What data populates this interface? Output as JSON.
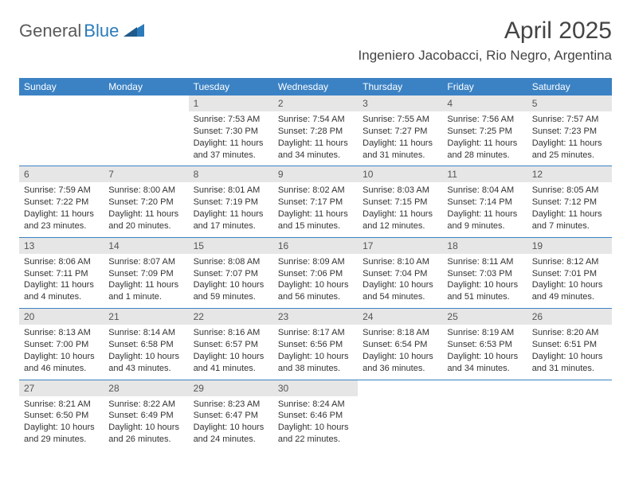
{
  "brand": {
    "part1": "General",
    "part2": "Blue"
  },
  "title": "April 2025",
  "location": "Ingeniero Jacobacci, Rio Negro, Argentina",
  "colors": {
    "header_bg": "#3b82c4",
    "header_text": "#ffffff",
    "daynum_bg": "#e6e6e6",
    "row_border": "#3b82c4",
    "logo_gray": "#5a5a5a",
    "logo_blue": "#2b7bba"
  },
  "weekdays": [
    "Sunday",
    "Monday",
    "Tuesday",
    "Wednesday",
    "Thursday",
    "Friday",
    "Saturday"
  ],
  "weeks": [
    [
      {
        "empty": true
      },
      {
        "empty": true
      },
      {
        "day": "1",
        "sunrise": "Sunrise: 7:53 AM",
        "sunset": "Sunset: 7:30 PM",
        "daylight": "Daylight: 11 hours and 37 minutes."
      },
      {
        "day": "2",
        "sunrise": "Sunrise: 7:54 AM",
        "sunset": "Sunset: 7:28 PM",
        "daylight": "Daylight: 11 hours and 34 minutes."
      },
      {
        "day": "3",
        "sunrise": "Sunrise: 7:55 AM",
        "sunset": "Sunset: 7:27 PM",
        "daylight": "Daylight: 11 hours and 31 minutes."
      },
      {
        "day": "4",
        "sunrise": "Sunrise: 7:56 AM",
        "sunset": "Sunset: 7:25 PM",
        "daylight": "Daylight: 11 hours and 28 minutes."
      },
      {
        "day": "5",
        "sunrise": "Sunrise: 7:57 AM",
        "sunset": "Sunset: 7:23 PM",
        "daylight": "Daylight: 11 hours and 25 minutes."
      }
    ],
    [
      {
        "day": "6",
        "sunrise": "Sunrise: 7:59 AM",
        "sunset": "Sunset: 7:22 PM",
        "daylight": "Daylight: 11 hours and 23 minutes."
      },
      {
        "day": "7",
        "sunrise": "Sunrise: 8:00 AM",
        "sunset": "Sunset: 7:20 PM",
        "daylight": "Daylight: 11 hours and 20 minutes."
      },
      {
        "day": "8",
        "sunrise": "Sunrise: 8:01 AM",
        "sunset": "Sunset: 7:19 PM",
        "daylight": "Daylight: 11 hours and 17 minutes."
      },
      {
        "day": "9",
        "sunrise": "Sunrise: 8:02 AM",
        "sunset": "Sunset: 7:17 PM",
        "daylight": "Daylight: 11 hours and 15 minutes."
      },
      {
        "day": "10",
        "sunrise": "Sunrise: 8:03 AM",
        "sunset": "Sunset: 7:15 PM",
        "daylight": "Daylight: 11 hours and 12 minutes."
      },
      {
        "day": "11",
        "sunrise": "Sunrise: 8:04 AM",
        "sunset": "Sunset: 7:14 PM",
        "daylight": "Daylight: 11 hours and 9 minutes."
      },
      {
        "day": "12",
        "sunrise": "Sunrise: 8:05 AM",
        "sunset": "Sunset: 7:12 PM",
        "daylight": "Daylight: 11 hours and 7 minutes."
      }
    ],
    [
      {
        "day": "13",
        "sunrise": "Sunrise: 8:06 AM",
        "sunset": "Sunset: 7:11 PM",
        "daylight": "Daylight: 11 hours and 4 minutes."
      },
      {
        "day": "14",
        "sunrise": "Sunrise: 8:07 AM",
        "sunset": "Sunset: 7:09 PM",
        "daylight": "Daylight: 11 hours and 1 minute."
      },
      {
        "day": "15",
        "sunrise": "Sunrise: 8:08 AM",
        "sunset": "Sunset: 7:07 PM",
        "daylight": "Daylight: 10 hours and 59 minutes."
      },
      {
        "day": "16",
        "sunrise": "Sunrise: 8:09 AM",
        "sunset": "Sunset: 7:06 PM",
        "daylight": "Daylight: 10 hours and 56 minutes."
      },
      {
        "day": "17",
        "sunrise": "Sunrise: 8:10 AM",
        "sunset": "Sunset: 7:04 PM",
        "daylight": "Daylight: 10 hours and 54 minutes."
      },
      {
        "day": "18",
        "sunrise": "Sunrise: 8:11 AM",
        "sunset": "Sunset: 7:03 PM",
        "daylight": "Daylight: 10 hours and 51 minutes."
      },
      {
        "day": "19",
        "sunrise": "Sunrise: 8:12 AM",
        "sunset": "Sunset: 7:01 PM",
        "daylight": "Daylight: 10 hours and 49 minutes."
      }
    ],
    [
      {
        "day": "20",
        "sunrise": "Sunrise: 8:13 AM",
        "sunset": "Sunset: 7:00 PM",
        "daylight": "Daylight: 10 hours and 46 minutes."
      },
      {
        "day": "21",
        "sunrise": "Sunrise: 8:14 AM",
        "sunset": "Sunset: 6:58 PM",
        "daylight": "Daylight: 10 hours and 43 minutes."
      },
      {
        "day": "22",
        "sunrise": "Sunrise: 8:16 AM",
        "sunset": "Sunset: 6:57 PM",
        "daylight": "Daylight: 10 hours and 41 minutes."
      },
      {
        "day": "23",
        "sunrise": "Sunrise: 8:17 AM",
        "sunset": "Sunset: 6:56 PM",
        "daylight": "Daylight: 10 hours and 38 minutes."
      },
      {
        "day": "24",
        "sunrise": "Sunrise: 8:18 AM",
        "sunset": "Sunset: 6:54 PM",
        "daylight": "Daylight: 10 hours and 36 minutes."
      },
      {
        "day": "25",
        "sunrise": "Sunrise: 8:19 AM",
        "sunset": "Sunset: 6:53 PM",
        "daylight": "Daylight: 10 hours and 34 minutes."
      },
      {
        "day": "26",
        "sunrise": "Sunrise: 8:20 AM",
        "sunset": "Sunset: 6:51 PM",
        "daylight": "Daylight: 10 hours and 31 minutes."
      }
    ],
    [
      {
        "day": "27",
        "sunrise": "Sunrise: 8:21 AM",
        "sunset": "Sunset: 6:50 PM",
        "daylight": "Daylight: 10 hours and 29 minutes."
      },
      {
        "day": "28",
        "sunrise": "Sunrise: 8:22 AM",
        "sunset": "Sunset: 6:49 PM",
        "daylight": "Daylight: 10 hours and 26 minutes."
      },
      {
        "day": "29",
        "sunrise": "Sunrise: 8:23 AM",
        "sunset": "Sunset: 6:47 PM",
        "daylight": "Daylight: 10 hours and 24 minutes."
      },
      {
        "day": "30",
        "sunrise": "Sunrise: 8:24 AM",
        "sunset": "Sunset: 6:46 PM",
        "daylight": "Daylight: 10 hours and 22 minutes."
      },
      {
        "empty": true
      },
      {
        "empty": true
      },
      {
        "empty": true
      }
    ]
  ]
}
